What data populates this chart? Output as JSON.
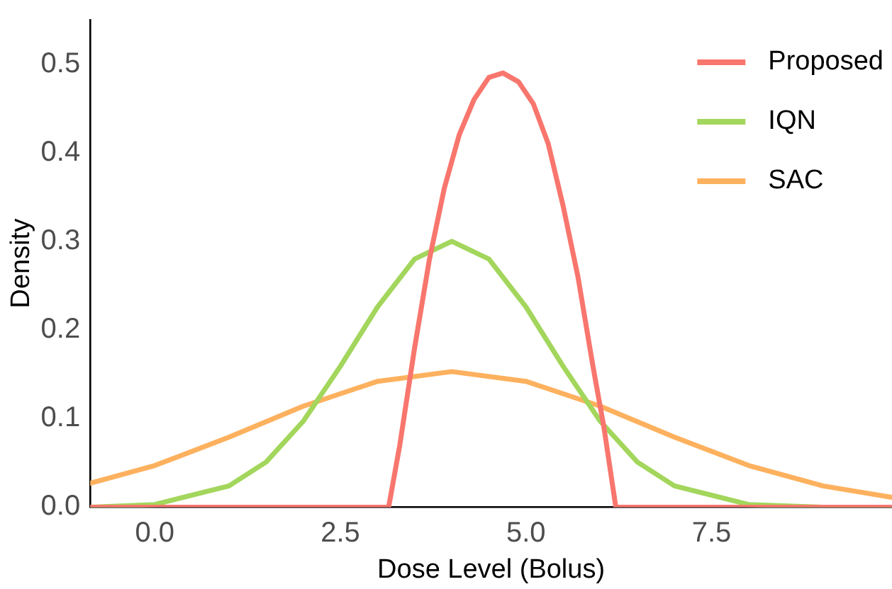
{
  "chart_data": {
    "type": "line",
    "xlabel": "Dose Level (Bolus)",
    "ylabel": "Density",
    "xlim": [
      -0.87,
      9.93
    ],
    "ylim": [
      0,
      0.55
    ],
    "xticks": [
      {
        "value": 0,
        "label": "0.0"
      },
      2.5,
      {
        "value": 5,
        "label": "5.0"
      },
      7.5
    ],
    "yticks": [
      {
        "value": 0,
        "label": "0.0"
      },
      0.1,
      0.2,
      0.3,
      0.4,
      0.5
    ],
    "grid": false,
    "legend": "top right",
    "marker": "none",
    "line_style": "solid",
    "series": [
      {
        "name": "Proposed",
        "color": "#f8766d",
        "x": [
          -0.87,
          3.15,
          3.3,
          3.5,
          3.7,
          3.9,
          4.1,
          4.3,
          4.5,
          4.69,
          4.9,
          5.1,
          5.3,
          5.5,
          5.7,
          5.9,
          6.05,
          6.21,
          9.93
        ],
        "values": [
          0,
          0,
          0.07,
          0.18,
          0.28,
          0.36,
          0.42,
          0.46,
          0.485,
          0.49,
          0.48,
          0.455,
          0.41,
          0.34,
          0.26,
          0.16,
          0.09,
          0,
          0
        ]
      },
      {
        "name": "IQN",
        "color": "#a3d65c",
        "x": [
          -0.87,
          0,
          1,
          1.5,
          2,
          2.5,
          3,
          3.5,
          4,
          4.5,
          5,
          5.5,
          6,
          6.5,
          7,
          8,
          9,
          9.93
        ],
        "values": [
          0,
          0.003,
          0.024,
          0.051,
          0.097,
          0.159,
          0.226,
          0.28,
          0.3,
          0.28,
          0.226,
          0.159,
          0.097,
          0.051,
          0.024,
          0.003,
          0,
          0
        ]
      },
      {
        "name": "SAC",
        "color": "#fdb15e",
        "x": [
          -0.87,
          0,
          1,
          2,
          3,
          4,
          5,
          6,
          7,
          8,
          9,
          9.93
        ],
        "values": [
          0.027,
          0.047,
          0.079,
          0.114,
          0.142,
          0.153,
          0.142,
          0.114,
          0.079,
          0.047,
          0.024,
          0.011
        ]
      }
    ]
  }
}
